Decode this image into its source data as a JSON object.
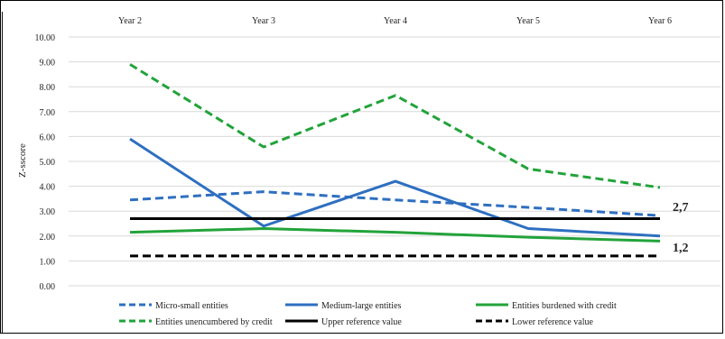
{
  "chart_data": {
    "type": "line",
    "title": "",
    "xlabel": "",
    "ylabel": "Z-sscore",
    "categories": [
      "Year 2",
      "Year 3",
      "Year 4",
      "Year 5",
      "Year 6"
    ],
    "ylim": [
      0,
      10
    ],
    "yticks": [
      "0.00",
      "1.00",
      "2.00",
      "3.00",
      "4.00",
      "5.00",
      "6.00",
      "7.00",
      "8.00",
      "9.00",
      "10.00"
    ],
    "grid": true,
    "legend_position": "bottom",
    "series": [
      {
        "name": "Micro-small entities",
        "values": [
          3.45,
          3.78,
          3.45,
          3.15,
          2.82
        ],
        "color": "#2e6fc0",
        "dash": "dashed"
      },
      {
        "name": "Medium-large entities",
        "values": [
          5.9,
          2.4,
          4.2,
          2.3,
          2.0
        ],
        "color": "#2e6fc0",
        "dash": "solid"
      },
      {
        "name": "Entities burdened with credit",
        "values": [
          2.15,
          2.3,
          2.15,
          1.95,
          1.8
        ],
        "color": "#22a33a",
        "dash": "solid"
      },
      {
        "name": "Entities unencumbered by credit",
        "values": [
          8.9,
          5.58,
          7.65,
          4.7,
          3.95
        ],
        "color": "#22a33a",
        "dash": "dashed"
      },
      {
        "name": "Upper reference value",
        "values": [
          2.7,
          2.7,
          2.7,
          2.7,
          2.7
        ],
        "color": "#000000",
        "dash": "solid"
      },
      {
        "name": "Lower reference value",
        "values": [
          1.2,
          1.2,
          1.2,
          1.2,
          1.2
        ],
        "color": "#000000",
        "dash": "dashed"
      }
    ],
    "annotations": [
      "2,7",
      "1,2"
    ]
  }
}
